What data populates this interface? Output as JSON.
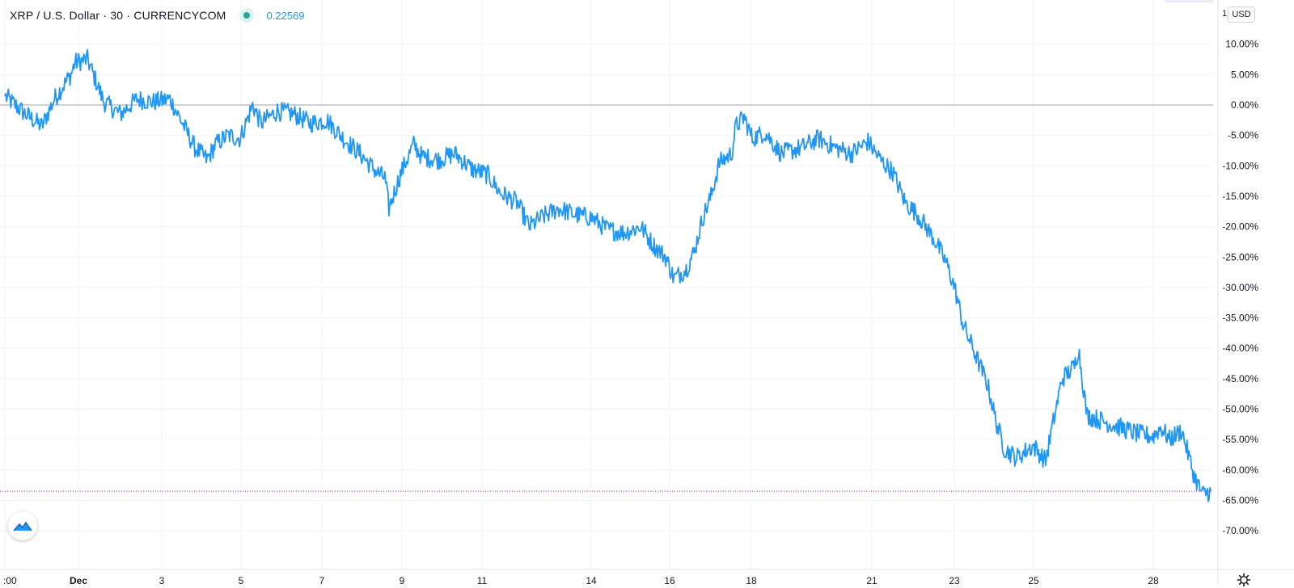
{
  "header": {
    "symbol": "XRP / U.S. Dollar · 30 · CURRENCYCOM",
    "status_color": "#26a69a",
    "last_price": "0.22569"
  },
  "axis_unit_button": "USD",
  "axis_top_number": "1",
  "colors": {
    "line": "#2196f3",
    "zero_line": "#b2b5be",
    "last_price_line": "#9c27b0",
    "grid": "#f0f3fa"
  },
  "chart_data": {
    "type": "line",
    "title": "XRP / U.S. Dollar · 30 · CURRENCYCOM",
    "x_tick_labels": [
      ":00",
      "Dec",
      "3",
      "5",
      "7",
      "9",
      "11",
      "14",
      "16",
      "18",
      "21",
      "23",
      "25",
      "28"
    ],
    "y_tick_labels": [
      "10.00%",
      "5.00%",
      "0.00%",
      "-5.00%",
      "-10.00%",
      "-15.00%",
      "-20.00%",
      "-25.00%",
      "-30.00%",
      "-35.00%",
      "-40.00%",
      "-45.00%",
      "-50.00%",
      "-55.00%",
      "-60.00%",
      "-65.00%",
      "-70.00%"
    ],
    "y_unit": "percent change",
    "ylim": [
      -73,
      14
    ],
    "x_range": [
      0,
      29.2
    ],
    "last_value": -63.5,
    "series": [
      {
        "x": [
          0,
          0.5,
          0.9,
          1.2,
          1.6,
          1.7,
          2.0,
          2.4,
          2.8,
          3.2,
          3.6,
          4.0,
          4.3,
          4.6,
          4.9,
          5.1,
          5.4,
          5.7,
          6.0,
          6.2,
          6.6,
          7.0,
          7.4,
          7.8,
          8.2,
          8.6,
          9.0,
          9.2,
          9.3,
          9.6,
          9.9,
          10.1,
          10.5,
          10.9,
          11.3,
          11.7,
          12.0,
          12.4,
          12.7,
          13.0,
          13.4,
          13.8,
          14.2,
          14.6,
          15.0,
          15.4,
          15.7,
          16.0,
          16.2,
          16.5,
          16.7,
          16.9,
          17.1,
          17.3,
          17.6,
          17.7,
          17.9,
          18.1,
          18.4,
          18.8,
          19.3,
          19.7,
          20.1,
          20.5,
          20.9,
          21.2,
          21.5,
          21.8,
          22.1,
          22.5,
          22.8,
          23.0,
          23.2,
          23.5,
          23.8,
          24.0,
          24.2,
          24.5,
          24.9,
          25.2,
          25.6,
          25.9,
          26.0,
          26.2,
          26.6,
          27.0,
          27.4,
          27.8,
          28.0,
          28.2,
          28.5,
          28.8,
          29.0,
          29.2
        ],
        "y": [
          1.5,
          -1.5,
          -3.5,
          1.0,
          5.0,
          7.0,
          7.5,
          0.5,
          -1.5,
          1.0,
          0.5,
          1.0,
          -3.0,
          -7.0,
          -9.0,
          -6.5,
          -5.0,
          -5.5,
          0.0,
          -3.0,
          -1.0,
          -1.5,
          -3.0,
          -2.5,
          -5.5,
          -8.0,
          -11.0,
          -12.0,
          -17.0,
          -11.0,
          -6.5,
          -8.5,
          -9.0,
          -8.0,
          -10.5,
          -11.5,
          -14.5,
          -16.0,
          -20.0,
          -18.5,
          -17.0,
          -18.0,
          -18.5,
          -20.5,
          -21.0,
          -20.0,
          -23.0,
          -25.0,
          -28.5,
          -27.0,
          -24.0,
          -18.5,
          -15.0,
          -9.5,
          -8.0,
          -3.5,
          -2.0,
          -5.5,
          -4.5,
          -8.0,
          -7.0,
          -5.5,
          -7.0,
          -8.0,
          -6.0,
          -9.0,
          -11.0,
          -16.0,
          -18.0,
          -22.0,
          -26.0,
          -30.0,
          -36.0,
          -41.0,
          -46.0,
          -52.0,
          -56.5,
          -58.0,
          -56.0,
          -58.5,
          -45.0,
          -43.0,
          -40.0,
          -51.0,
          -52.0,
          -53.0,
          -54.0,
          -54.5,
          -53.0,
          -55.0,
          -53.5,
          -61.0,
          -64.0,
          -63.5
        ]
      }
    ]
  }
}
